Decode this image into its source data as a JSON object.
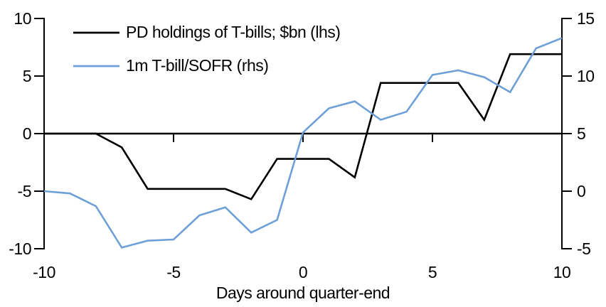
{
  "chart_data": {
    "type": "line",
    "title": "",
    "xlabel": "Days around quarter-end",
    "x": [
      -10,
      -9,
      -8,
      -7,
      -6,
      -5,
      -4,
      -3,
      -2,
      -1,
      0,
      1,
      2,
      3,
      4,
      5,
      6,
      7,
      8,
      9,
      10
    ],
    "x_ticks": [
      -10,
      -5,
      0,
      5,
      10
    ],
    "left_axis": {
      "range": [
        -10,
        10
      ],
      "ticks": [
        10,
        5,
        0,
        -5,
        -10
      ]
    },
    "right_axis": {
      "range": [
        -5,
        15
      ],
      "ticks": [
        15,
        10,
        5,
        0,
        -5
      ]
    },
    "grid": false,
    "legend_position": "top-left",
    "series": [
      {
        "name": "PD holdings of T-bills; $bn (lhs)",
        "axis": "lhs",
        "color": "#000000",
        "values": [
          0,
          0,
          0,
          -1.2,
          -4.8,
          -4.8,
          -4.8,
          -4.8,
          -5.7,
          -2.2,
          -2.2,
          -2.2,
          -3.8,
          4.4,
          4.4,
          4.4,
          4.4,
          1.2,
          6.9,
          6.9,
          6.9
        ]
      },
      {
        "name": "1m T-bill/SOFR (rhs)",
        "axis": "rhs",
        "color": "#6EA0D7",
        "values": [
          0,
          -0.2,
          -1.3,
          -4.9,
          -4.3,
          -4.2,
          -2.1,
          -1.4,
          -3.6,
          -2.5,
          5.1,
          7.2,
          7.8,
          6.2,
          6.9,
          10.1,
          10.5,
          9.9,
          8.6,
          12.4,
          13.3
        ]
      }
    ]
  }
}
